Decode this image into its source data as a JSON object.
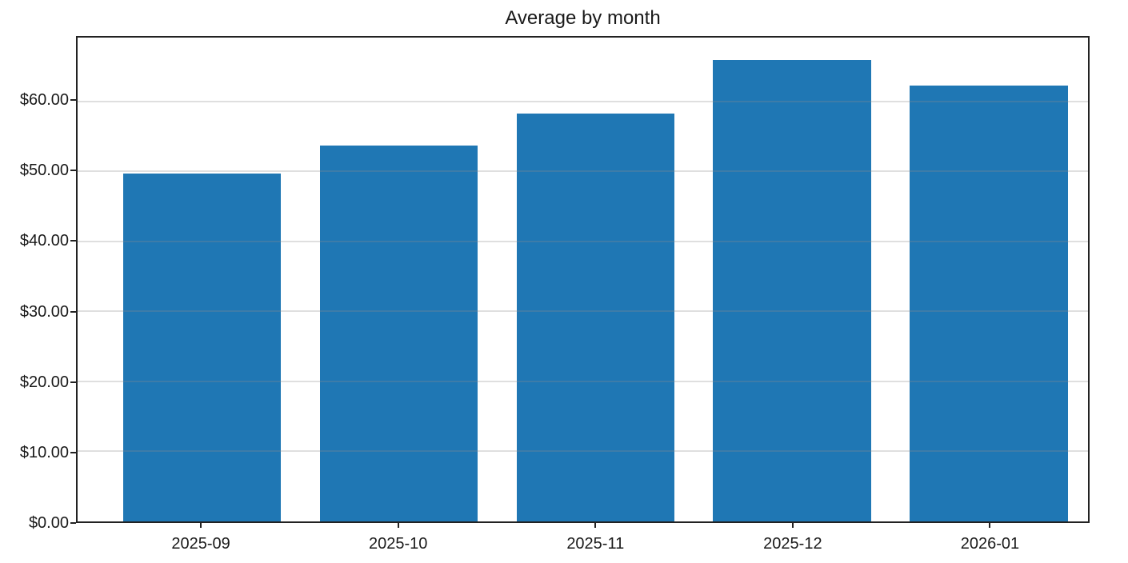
{
  "page": {
    "background": "#ffffff"
  },
  "chart_data": {
    "type": "bar",
    "title": "Average by month",
    "categories": [
      "2025-09",
      "2025-10",
      "2025-11",
      "2025-12",
      "2026-01"
    ],
    "values": [
      49.7,
      53.7,
      58.3,
      65.9,
      62.2
    ],
    "xlabel": "",
    "ylabel": "",
    "ylim": [
      0,
      69.1
    ],
    "y_ticks": [
      {
        "value": 0,
        "label": "$0.00"
      },
      {
        "value": 10,
        "label": "$10.00"
      },
      {
        "value": 20,
        "label": "$20.00"
      },
      {
        "value": 30,
        "label": "$30.00"
      },
      {
        "value": 40,
        "label": "$40.00"
      },
      {
        "value": 50,
        "label": "$50.00"
      },
      {
        "value": 60,
        "label": "$60.00"
      }
    ],
    "grid": "horizontal",
    "grid_above_bars": true,
    "legend": "none",
    "colors": {
      "bar": "#1f77b4",
      "gridline": "rgba(140,140,140,0.28)",
      "axis": "#222222",
      "text": "#1a1a1a",
      "background": "#ffffff"
    }
  }
}
